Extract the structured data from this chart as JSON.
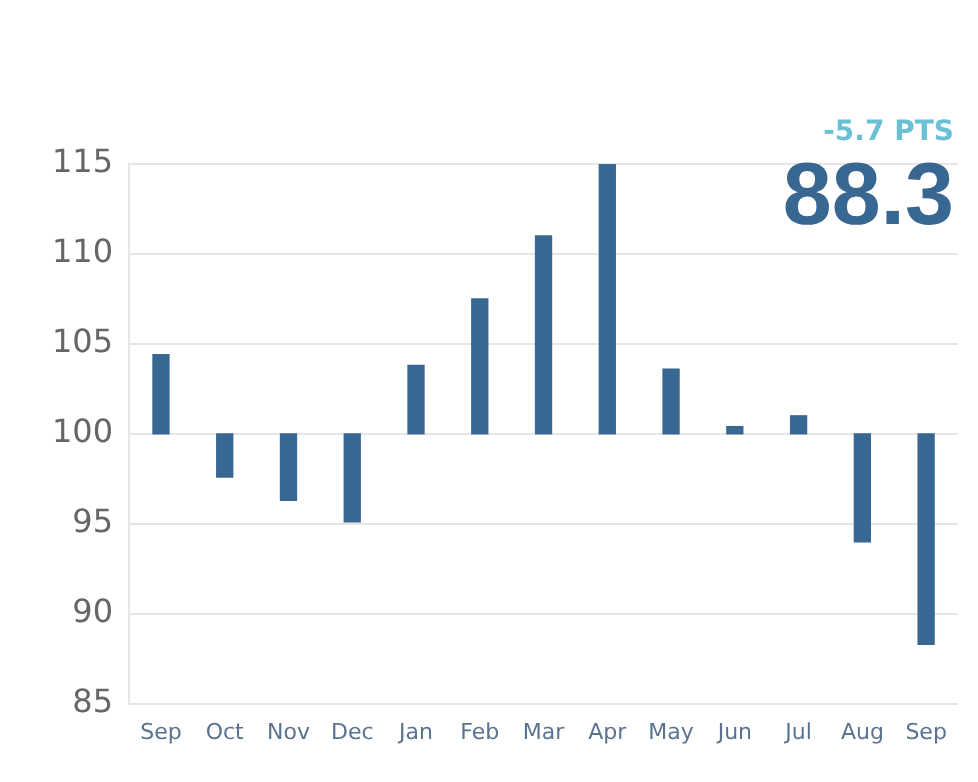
{
  "chart_data": {
    "type": "bar",
    "categories": [
      "Sep",
      "Oct",
      "Nov",
      "Dec",
      "Jan",
      "Feb",
      "Mar",
      "Apr",
      "May",
      "Jun",
      "Jul",
      "Aug",
      "Sep"
    ],
    "base": [
      100,
      100,
      100,
      100,
      100,
      100,
      100,
      100,
      100,
      100,
      100,
      100,
      100
    ],
    "values": [
      4.4,
      -2.4,
      -3.7,
      -4.9,
      3.8,
      7.5,
      11.0,
      15.4,
      3.6,
      0.4,
      1.0,
      -6.0,
      -11.7
    ],
    "color": "#386792",
    "ylim": [
      85,
      115
    ],
    "yticks": [
      85,
      90,
      95,
      100,
      105,
      110,
      115
    ],
    "grid": "y",
    "legend": false,
    "annotations": [
      "-5.7 PTS",
      "88.3"
    ]
  }
}
